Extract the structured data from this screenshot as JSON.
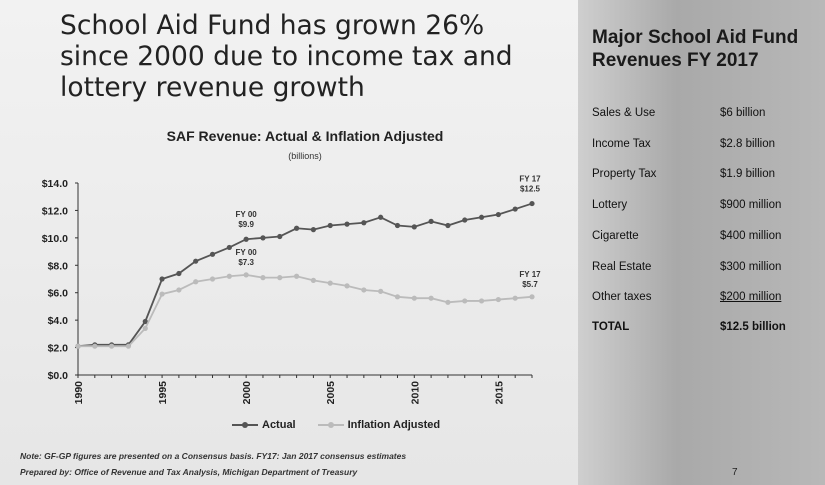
{
  "slide": {
    "headline": "School Aid Fund has grown 26% since 2000 due to income tax and lottery revenue growth",
    "note_line1": "Note: GF-GP figures are presented on a Consensus basis. FY17: Jan 2017 consensus estimates",
    "note_line2": "Prepared by: Office of Revenue and Tax Analysis, Michigan Department of Treasury",
    "page_number": "7"
  },
  "revenues": {
    "title": "Major School Aid Fund Revenues FY 2017",
    "rows": [
      {
        "label": "Sales & Use",
        "value": "$6 billion"
      },
      {
        "label": "Income Tax",
        "value": "$2.8 billion"
      },
      {
        "label": "Property Tax",
        "value": "$1.9 billion"
      },
      {
        "label": "Lottery",
        "value": "$900 million"
      },
      {
        "label": "Cigarette",
        "value": "$400 million"
      },
      {
        "label": "Real Estate",
        "value": "$300 million"
      },
      {
        "label": "Other taxes",
        "value": "$200 million"
      },
      {
        "label": "TOTAL",
        "value": "$12.5 billion"
      }
    ]
  },
  "chart_data": {
    "type": "line",
    "title": "SAF Revenue: Actual & Inflation Adjusted",
    "subtitle": "(billions)",
    "ylim": [
      0,
      14
    ],
    "xlim": [
      1990,
      2017
    ],
    "y_ticks": [
      "$0.0",
      "$2.0",
      "$4.0",
      "$6.0",
      "$8.0",
      "$10.0",
      "$12.0",
      "$14.0"
    ],
    "x_ticks": [
      "1990",
      "1995",
      "2000",
      "2005",
      "2010",
      "2015"
    ],
    "grid": false,
    "x": [
      1990,
      1991,
      1992,
      1993,
      1994,
      1995,
      1996,
      1997,
      1998,
      1999,
      2000,
      2001,
      2002,
      2003,
      2004,
      2005,
      2006,
      2007,
      2008,
      2009,
      2010,
      2011,
      2012,
      2013,
      2014,
      2015,
      2016,
      2017
    ],
    "series": [
      {
        "name": "Actual",
        "color": "#555555",
        "values": [
          2.1,
          2.2,
          2.2,
          2.2,
          3.9,
          7.0,
          7.4,
          8.3,
          8.8,
          9.3,
          9.9,
          10.0,
          10.1,
          10.7,
          10.6,
          10.9,
          11.0,
          11.1,
          11.5,
          10.9,
          10.8,
          11.2,
          10.9,
          11.3,
          11.5,
          11.7,
          12.1,
          12.5
        ]
      },
      {
        "name": "Inflation Adjusted",
        "color": "#bbbbbb",
        "values": [
          2.1,
          2.1,
          2.1,
          2.1,
          3.4,
          5.9,
          6.2,
          6.8,
          7.0,
          7.2,
          7.3,
          7.1,
          7.1,
          7.2,
          6.9,
          6.7,
          6.5,
          6.2,
          6.1,
          5.7,
          5.6,
          5.6,
          5.3,
          5.4,
          5.4,
          5.5,
          5.6,
          5.7
        ]
      }
    ],
    "annotations": [
      {
        "line1": "FY 00",
        "line2": "$9.9",
        "x": 2000,
        "y": 9.9,
        "series": "Actual"
      },
      {
        "line1": "FY 00",
        "line2": "$7.3",
        "x": 2000,
        "y": 7.3,
        "series": "Inflation Adjusted"
      },
      {
        "line1": "FY 17",
        "line2": "$12.5",
        "x": 2017,
        "y": 12.5,
        "series": "Actual"
      },
      {
        "line1": "FY 17",
        "line2": "$5.7",
        "x": 2017,
        "y": 5.7,
        "series": "Inflation Adjusted"
      }
    ]
  }
}
